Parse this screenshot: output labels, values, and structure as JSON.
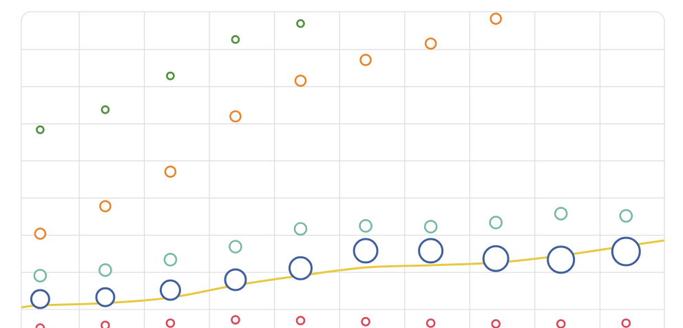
{
  "chart_data": {
    "type": "scatter",
    "x": [
      1,
      2,
      3,
      4,
      5,
      6,
      7,
      8,
      9,
      10
    ],
    "xlim": [
      0.7,
      10.6
    ],
    "xticks": [
      1.6,
      2.6,
      3.6,
      4.6,
      5.6,
      6.6,
      7.6,
      8.6,
      9.6
    ],
    "ylim": [
      -0.5,
      8
    ],
    "yticks": [
      0,
      1,
      2,
      3,
      4,
      5,
      6,
      7
    ],
    "grid": true,
    "series": [
      {
        "color": "#4e8f3a",
        "radius": 5,
        "values": [
          4.84,
          5.38,
          6.29,
          7.27,
          7.7
        ]
      },
      {
        "color": "#e8842a",
        "radius": 7.5,
        "values": [
          2.04,
          2.78,
          3.71,
          5.2,
          6.16,
          6.72,
          7.16,
          7.83
        ]
      },
      {
        "color": "#77b8a6",
        "radius": 8.5,
        "values": [
          0.91,
          1.06,
          1.34,
          1.69,
          2.17,
          2.25,
          2.23,
          2.34,
          2.58,
          2.52
        ]
      },
      {
        "color": "#3f5f9c",
        "values": [
          0.28,
          0.33,
          0.52,
          0.8,
          1.11,
          1.58,
          1.58,
          1.37,
          1.34,
          1.56
        ],
        "sizes": [
          13,
          13,
          14,
          15,
          16,
          17,
          17,
          18,
          19,
          20
        ]
      },
      {
        "color": "#d9485a",
        "radius": 5.5,
        "values": [
          -0.5,
          -0.43,
          -0.37,
          -0.28,
          -0.3,
          -0.33,
          -0.37,
          -0.39,
          -0.39,
          -0.37
        ]
      },
      {
        "type": "line",
        "color": "#e8c840",
        "x": [
          0.7,
          1,
          2,
          3,
          4,
          5,
          6,
          7,
          8,
          9,
          10,
          10.6
        ],
        "values": [
          0.05,
          0.11,
          0.17,
          0.32,
          0.65,
          0.91,
          1.13,
          1.19,
          1.26,
          1.45,
          1.71,
          1.86
        ]
      }
    ]
  }
}
